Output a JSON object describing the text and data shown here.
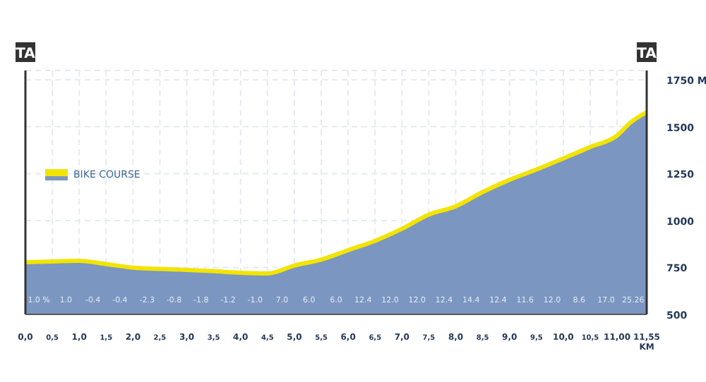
{
  "chart_data": {
    "type": "area",
    "legend": "top left",
    "grid": true,
    "x": [
      0,
      0.5,
      1,
      1.5,
      2,
      2.5,
      3,
      3.5,
      4,
      4.5,
      5,
      5.5,
      6,
      6.5,
      7,
      7.5,
      8,
      8.5,
      9,
      9.5,
      10,
      10.5,
      11,
      11.25,
      11.55
    ],
    "series": [
      {
        "color": "#7b96c0",
        "values": [
          778,
          782,
          786,
          768,
          749,
          742,
          737,
          730,
          722,
          718,
          760,
          792,
          842,
          892,
          956,
          1032,
          1076,
          1152,
          1217,
          1272,
          1331,
          1392,
          1453,
          1523,
          1578
        ]
      },
      {
        "type": "line",
        "name": "BIKE COURSE",
        "color": "#f2e400",
        "values": [
          778,
          782,
          786,
          768,
          749,
          742,
          737,
          730,
          722,
          718,
          760,
          792,
          842,
          892,
          956,
          1032,
          1076,
          1152,
          1217,
          1272,
          1331,
          1392,
          1453,
          1523,
          1578
        ]
      }
    ],
    "xlim": [
      0,
      11.55
    ],
    "xticks": [
      {
        "value": 0,
        "label": "0,0"
      },
      {
        "value": 0.5,
        "label": "0,5"
      },
      {
        "value": 1,
        "label": "1,0"
      },
      {
        "value": 1.5,
        "label": "1,5"
      },
      {
        "value": 2,
        "label": "2,0"
      },
      {
        "value": 2.5,
        "label": "2,5"
      },
      {
        "value": 3,
        "label": "3,0"
      },
      {
        "value": 3.5,
        "label": "3,5"
      },
      {
        "value": 4,
        "label": "4,0"
      },
      {
        "value": 4.5,
        "label": "4,5"
      },
      {
        "value": 5,
        "label": "5,0"
      },
      {
        "value": 5.5,
        "label": "5,5"
      },
      {
        "value": 6,
        "label": "6,0"
      },
      {
        "value": 6.5,
        "label": "6,5"
      },
      {
        "value": 7,
        "label": "7,0"
      },
      {
        "value": 7.5,
        "label": "7,5"
      },
      {
        "value": 8,
        "label": "8,0"
      },
      {
        "value": 8.5,
        "label": "8,5"
      },
      {
        "value": 9,
        "label": "9,0"
      },
      {
        "value": 9.5,
        "label": "9,5"
      },
      {
        "value": 10,
        "label": "10,0"
      },
      {
        "value": 10.5,
        "label": "10,5"
      },
      {
        "value": 11,
        "label": "11,00"
      },
      {
        "value": 11.55,
        "label": "11,55 KM"
      }
    ],
    "ylim": [
      500,
      1800
    ],
    "yticks": [
      500,
      750,
      1000,
      1250,
      1500,
      {
        "value": 1750,
        "label": "1750 M"
      }
    ],
    "ref_lines": [
      {
        "axis": "x",
        "value": 0,
        "label": "TA",
        "color": "#333333"
      },
      {
        "axis": "x",
        "value": 11.55,
        "label": "TA",
        "color": "#333333"
      }
    ],
    "annotations": [
      "1.0 %",
      "1.0",
      "-0.4",
      "-0.4",
      "-2.3",
      "-0.8",
      "-1.8",
      "-1.2",
      "-1.0",
      "7.0",
      "6.0",
      "6.0",
      "12.4",
      "12.0",
      "12.0",
      "12.4",
      "14.4",
      "12.4",
      "11.6",
      "12.0",
      "8.6",
      "17.0",
      "25.26"
    ]
  }
}
